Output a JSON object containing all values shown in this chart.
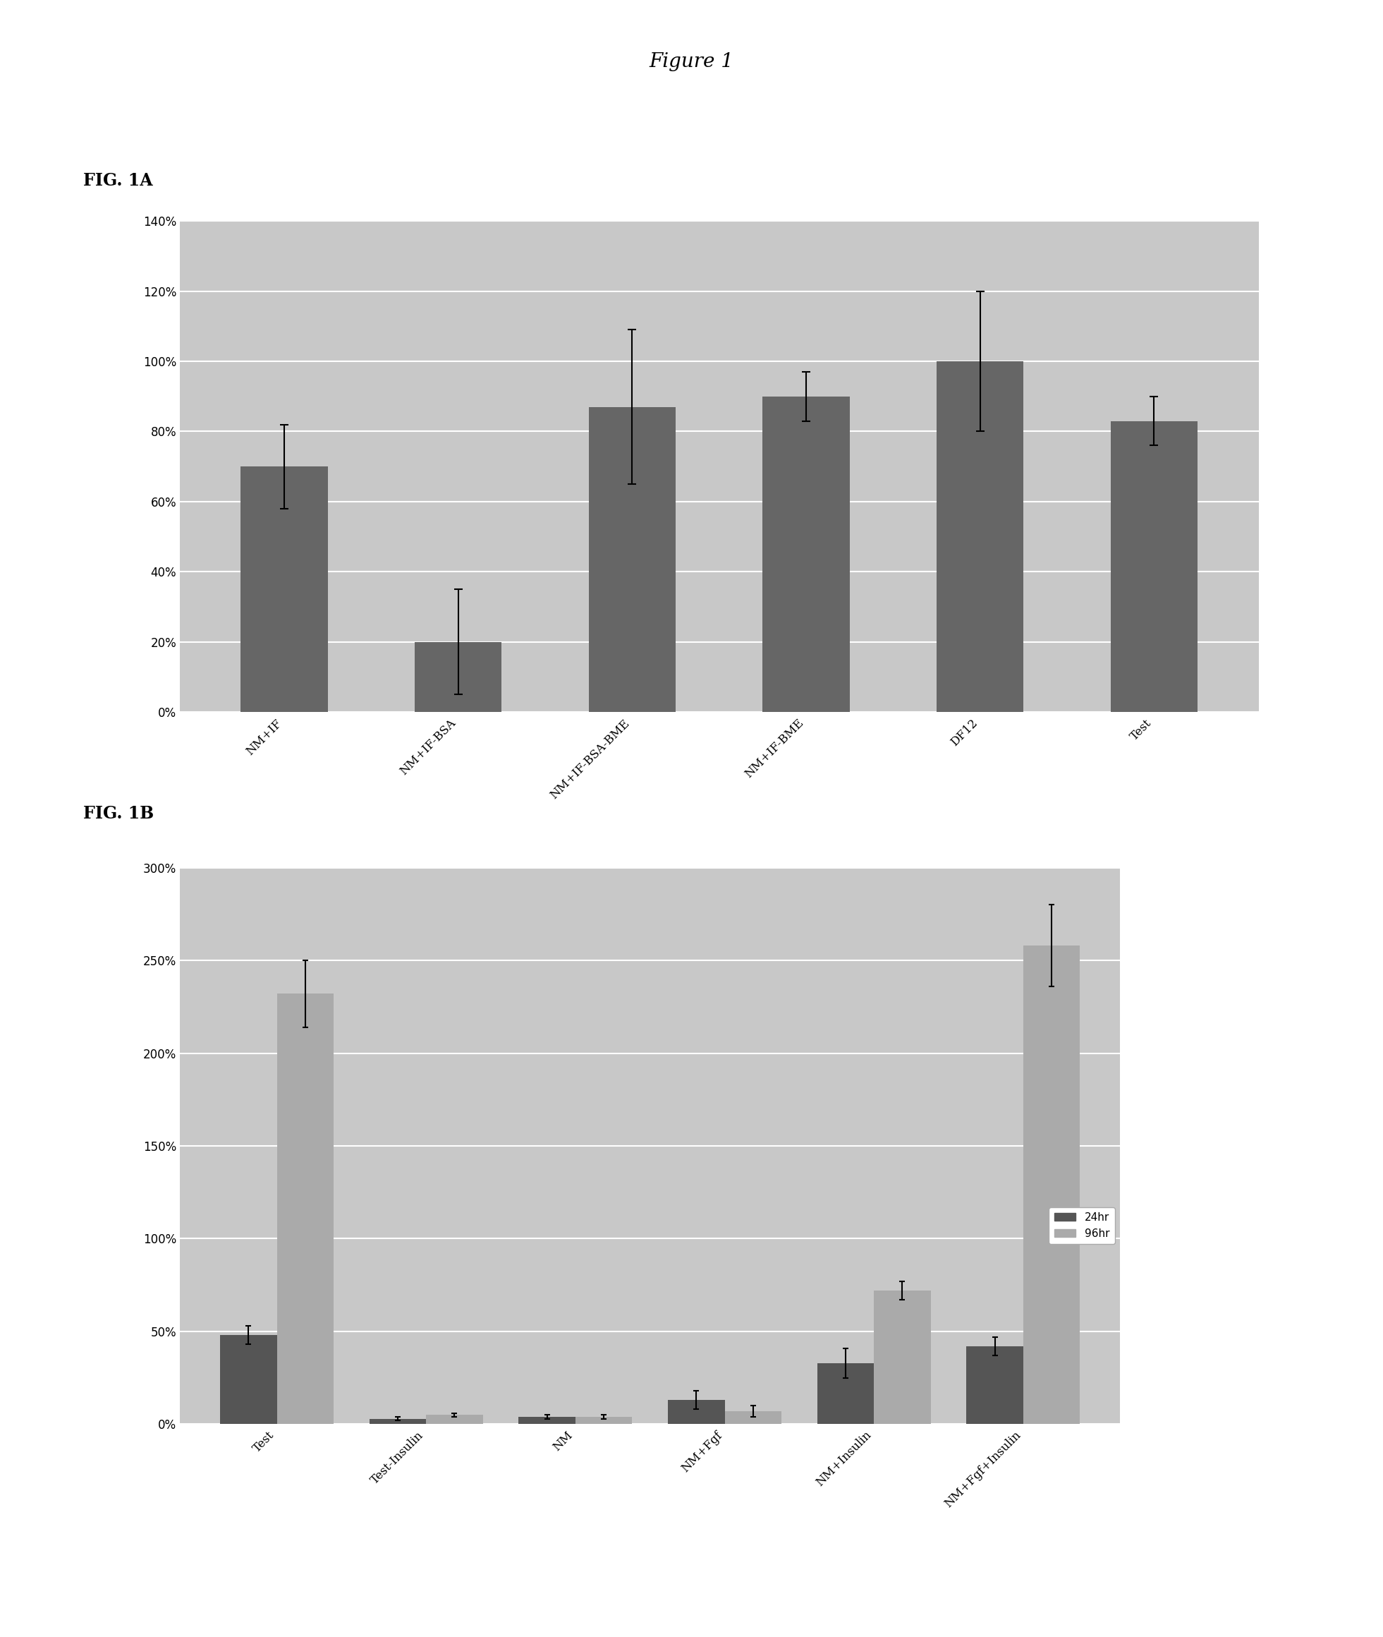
{
  "figure_title": "Figure 1",
  "fig1a_label": "FIG. 1A",
  "fig1b_label": "FIG. 1B",
  "fig1a": {
    "categories": [
      "NM+IF",
      "NM+IF-BSA",
      "NM+IF-BSA-BME",
      "NM+IF-BME",
      "DF12",
      "Test"
    ],
    "values": [
      70,
      20,
      87,
      90,
      100,
      83
    ],
    "errors": [
      12,
      15,
      22,
      7,
      20,
      7
    ],
    "bar_color": "#666666",
    "ylim": [
      0,
      140
    ],
    "yticks": [
      0,
      20,
      40,
      60,
      80,
      100,
      120,
      140
    ],
    "ytick_labels": [
      "0%",
      "20%",
      "40%",
      "60%",
      "80%",
      "100%",
      "120%",
      "140%"
    ]
  },
  "fig1b": {
    "categories": [
      "Test",
      "Test-Insulin",
      "NM",
      "NM+Fgf",
      "NM+Insulin",
      "NM+Fgf+Insulin"
    ],
    "values_24hr": [
      48,
      3,
      4,
      13,
      33,
      42
    ],
    "values_96hr": [
      232,
      5,
      4,
      7,
      72,
      258
    ],
    "errors_24hr": [
      5,
      1,
      1,
      5,
      8,
      5
    ],
    "errors_96hr": [
      18,
      1,
      1,
      3,
      5,
      22
    ],
    "color_24hr": "#555555",
    "color_96hr": "#aaaaaa",
    "ylim": [
      0,
      300
    ],
    "yticks": [
      0,
      50,
      100,
      150,
      200,
      250,
      300
    ],
    "ytick_labels": [
      "0%",
      "50%",
      "100%",
      "150%",
      "200%",
      "250%",
      "300%"
    ],
    "legend_24hr": "24hr",
    "legend_96hr": "96hr"
  },
  "background_color": "#ffffff",
  "plot_bg_color": "#c8c8c8",
  "grid_color": "#ffffff"
}
